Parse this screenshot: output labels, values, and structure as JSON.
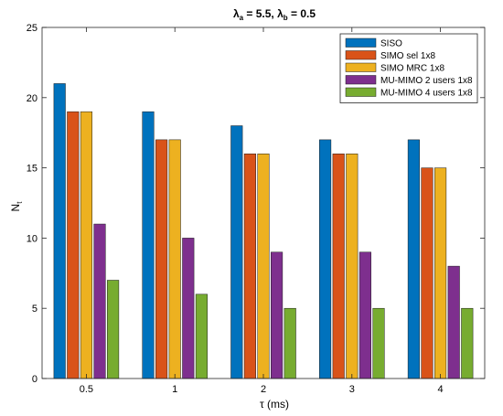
{
  "chart_data": {
    "type": "bar",
    "title": {
      "lambda_a_sym": "λ",
      "lambda_a_sub": "a",
      "lambda_a_val": " = 5.5, ",
      "lambda_b_sym": "λ",
      "lambda_b_sub": "b",
      "lambda_b_val": " = 0.5"
    },
    "xlabel": "τ (ms)",
    "ylabel_main": "N",
    "ylabel_sub": "t",
    "ylim": [
      0,
      25
    ],
    "yticks": [
      "0",
      "5",
      "10",
      "15",
      "20",
      "25"
    ],
    "categories": [
      "0.5",
      "1",
      "2",
      "3",
      "4"
    ],
    "grid": false,
    "legend_position": "top-right",
    "series": [
      {
        "name": "SISO",
        "color": "#0072BD",
        "values": [
          21,
          19,
          18,
          17,
          17
        ]
      },
      {
        "name": "SIMO sel 1x8",
        "color": "#D95319",
        "values": [
          19,
          17,
          16,
          16,
          15
        ]
      },
      {
        "name": "SIMO MRC 1x8",
        "color": "#EDB120",
        "values": [
          19,
          17,
          16,
          16,
          15
        ]
      },
      {
        "name": "MU-MIMO 2 users 1x8",
        "color": "#7E2F8E",
        "values": [
          11,
          10,
          9,
          9,
          8
        ]
      },
      {
        "name": "MU-MIMO 4 users 1x8",
        "color": "#77AC30",
        "values": [
          7,
          6,
          5,
          5,
          5
        ]
      }
    ]
  }
}
